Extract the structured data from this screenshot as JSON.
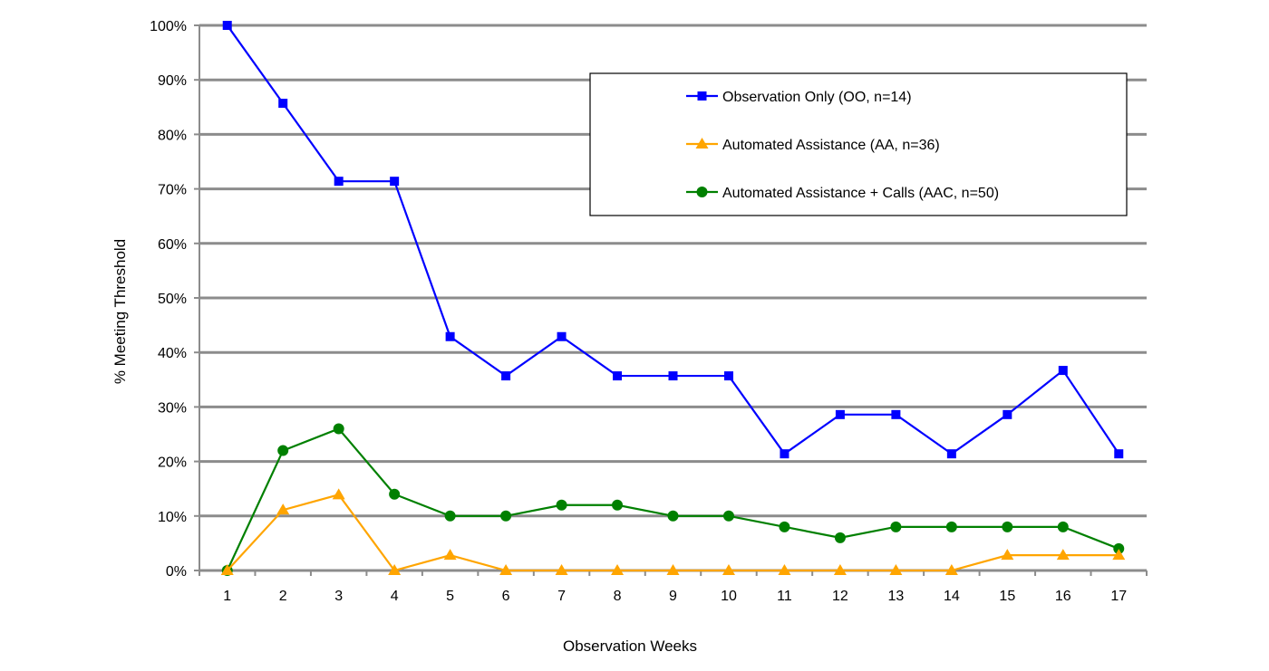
{
  "chart_data": {
    "type": "line",
    "title": "",
    "xlabel": "Observation Weeks",
    "ylabel": "% Meeting Threshold",
    "ylim": [
      0,
      100
    ],
    "yticks": [
      "0%",
      "10%",
      "20%",
      "30%",
      "40%",
      "50%",
      "60%",
      "70%",
      "80%",
      "90%",
      "100%"
    ],
    "categories": [
      "1",
      "2",
      "3",
      "4",
      "5",
      "6",
      "7",
      "8",
      "9",
      "10",
      "11",
      "12",
      "13",
      "14",
      "15",
      "16",
      "17"
    ],
    "grid": true,
    "legend_position": "top-right",
    "series": [
      {
        "name": "Observation Only (OO, n=14)",
        "color": "#0000ff",
        "marker": "square",
        "values": [
          100,
          85.7,
          71.4,
          71.4,
          42.9,
          35.7,
          42.9,
          35.7,
          35.7,
          35.7,
          21.4,
          28.6,
          28.6,
          21.4,
          28.6,
          36.7,
          21.4
        ]
      },
      {
        "name": "Automated Assistance (AA, n=36)",
        "color": "#ffa500",
        "marker": "triangle",
        "values": [
          0,
          11.1,
          13.9,
          0,
          2.8,
          0,
          0,
          0,
          0,
          0,
          0,
          0,
          0,
          0,
          2.8,
          2.8,
          2.8
        ]
      },
      {
        "name": "Automated Assistance + Calls (AAC, n=50)",
        "color": "#008000",
        "marker": "circle",
        "values": [
          0,
          22,
          26,
          14,
          10,
          10,
          12,
          12,
          10,
          10,
          8,
          6,
          8,
          8,
          8,
          8,
          4
        ]
      }
    ]
  }
}
